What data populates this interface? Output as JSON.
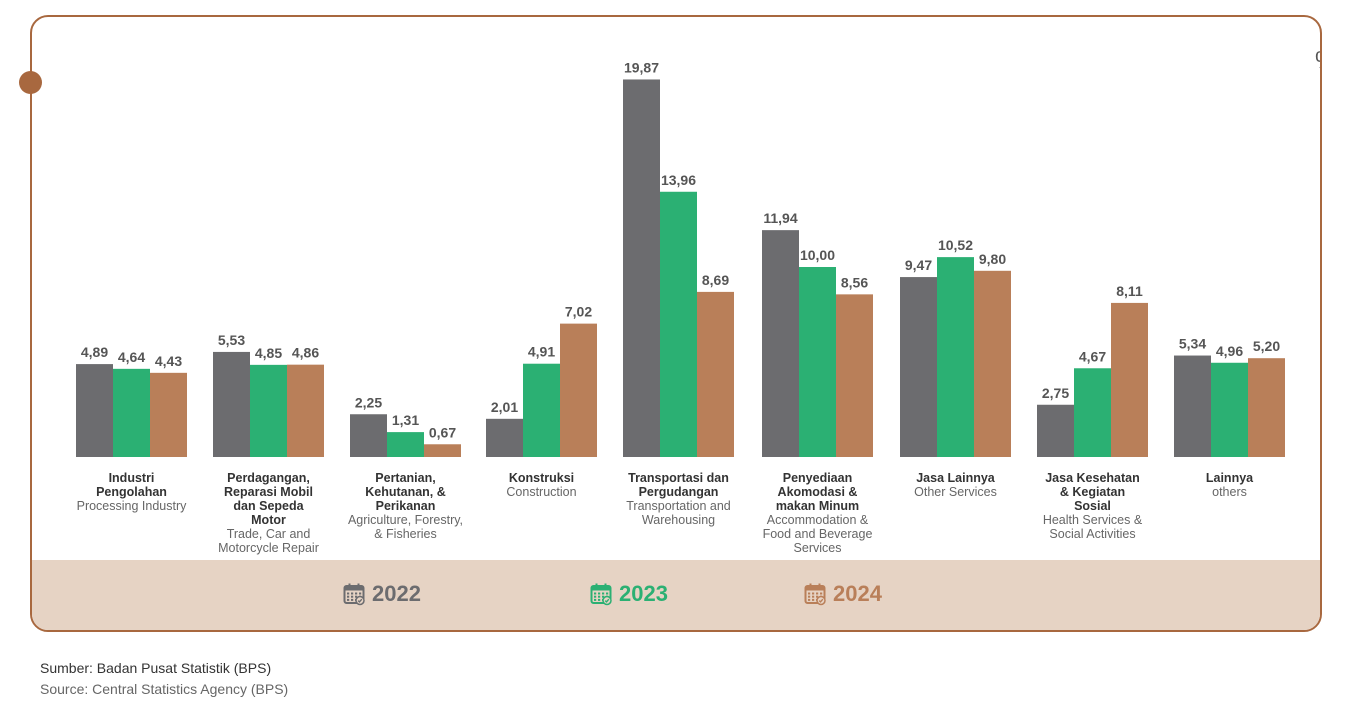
{
  "unit_label": "%",
  "colors": {
    "y2022": "#6c6c6f",
    "y2023": "#2bb073",
    "y2024": "#b97f59",
    "border": "#a8683f",
    "band": "#e6d3c4"
  },
  "legend": [
    {
      "label": "2022",
      "color": "#6c6c6f",
      "icon": "calendar-icon"
    },
    {
      "label": "2023",
      "color": "#2bb073",
      "icon": "calendar-icon"
    },
    {
      "label": "2024",
      "color": "#b97f59",
      "icon": "calendar-icon"
    }
  ],
  "chart_data": {
    "type": "bar",
    "title": "",
    "xlabel": "",
    "ylabel": "%",
    "ylim": [
      0,
      20
    ],
    "grid": false,
    "legend_position": "bottom",
    "categories": [
      {
        "id": "Industri Pengolahan",
        "label": [
          "Industri",
          "Pengolahan"
        ],
        "sublabel": [
          "Processing Industry"
        ]
      },
      {
        "id": "Perdagangan, Reparasi Mobil dan Sepeda Motor",
        "label": [
          "Perdagangan,",
          "Reparasi Mobil",
          "dan Sepeda",
          "Motor"
        ],
        "sublabel": [
          "Trade, Car and",
          "Motorcycle Repair"
        ]
      },
      {
        "id": "Pertanian, Kehutanan, & Perikanan",
        "label": [
          "Pertanian,",
          "Kehutanan, &",
          "Perikanan"
        ],
        "sublabel": [
          "Agriculture, Forestry,",
          "& Fisheries"
        ]
      },
      {
        "id": "Konstruksi",
        "label": [
          "Konstruksi"
        ],
        "sublabel": [
          "Construction"
        ]
      },
      {
        "id": "Transportasi dan Pergudangan",
        "label": [
          "Transportasi dan",
          "Pergudangan"
        ],
        "sublabel": [
          "Transportation and",
          "Warehousing"
        ]
      },
      {
        "id": "Penyediaan Akomodasi & makan Minum",
        "label": [
          "Penyediaan",
          "Akomodasi &",
          "makan Minum"
        ],
        "sublabel": [
          "Accommodation &",
          "Food and Beverage",
          "Services"
        ]
      },
      {
        "id": "Jasa Lainnya",
        "label": [
          "Jasa Lainnya"
        ],
        "sublabel": [
          "Other Services"
        ]
      },
      {
        "id": "Jasa Kesehatan & Kegiatan Sosial",
        "label": [
          "Jasa Kesehatan",
          "& Kegiatan",
          "Sosial"
        ],
        "sublabel": [
          "Health Services &",
          "Social Activities"
        ]
      },
      {
        "id": "Lainnya",
        "label": [
          "Lainnya"
        ],
        "sublabel": [
          "others"
        ]
      }
    ],
    "series": [
      {
        "name": "2022",
        "color": "#6c6c6f",
        "values": [
          4.89,
          5.53,
          2.25,
          2.01,
          19.87,
          11.94,
          9.47,
          2.75,
          5.34
        ],
        "labels": [
          "4,89",
          "5,53",
          "2,25",
          "2,01",
          "19,87",
          "11,94",
          "9,47",
          "2,75",
          "5,34"
        ]
      },
      {
        "name": "2023",
        "color": "#2bb073",
        "values": [
          4.64,
          4.85,
          1.31,
          4.91,
          13.96,
          10.0,
          10.52,
          4.67,
          4.96
        ],
        "labels": [
          "4,64",
          "4,85",
          "1,31",
          "4,91",
          "13,96",
          "10,00",
          "10,52",
          "4,67",
          "4,96"
        ]
      },
      {
        "name": "2024",
        "color": "#b97f59",
        "values": [
          4.43,
          4.86,
          0.67,
          7.02,
          8.69,
          8.56,
          9.8,
          8.11,
          5.2
        ],
        "labels": [
          "4,43",
          "4,86",
          "0,67",
          "7,02",
          "8,69",
          "8,56",
          "9,80",
          "8,11",
          "5,20"
        ]
      }
    ]
  },
  "source": {
    "line_id": "Sumber: Badan Pusat Statistik (BPS)",
    "line_en": "Source: Central Statistics Agency (BPS)"
  }
}
